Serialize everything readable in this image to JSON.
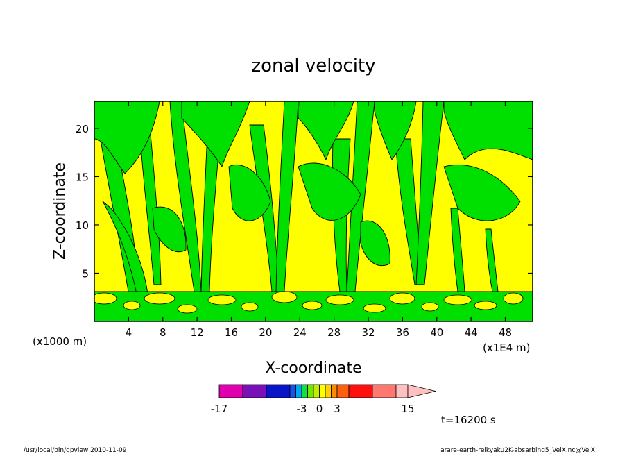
{
  "chart_data": {
    "type": "heatmap",
    "title": "zonal velocity",
    "xlabel": "X-coordinate",
    "ylabel": "Z-coordinate",
    "x_unit_left": "(x1000 m)",
    "x_unit_right": "(x1E4 m)",
    "x_ticks": [
      "4",
      "8",
      "12",
      "16",
      "20",
      "24",
      "28",
      "32",
      "36",
      "40",
      "44",
      "48"
    ],
    "x_tick_values": [
      4,
      8,
      12,
      16,
      20,
      24,
      28,
      32,
      36,
      40,
      44,
      48
    ],
    "y_ticks": [
      "5",
      "10",
      "15",
      "20"
    ],
    "y_tick_values": [
      5,
      10,
      15,
      20
    ],
    "xlim": [
      0,
      51.2
    ],
    "ylim": [
      0,
      22.8
    ],
    "colorbar": {
      "levels": [
        -17,
        -13,
        -9,
        -5,
        -4,
        -3,
        -2,
        -1,
        0,
        1,
        2,
        3,
        5,
        9,
        13,
        15
      ],
      "labels": [
        "-17",
        "-3",
        "0",
        "3",
        "15"
      ],
      "label_values": [
        -17,
        -3,
        0,
        3,
        15
      ],
      "colors": [
        "#e000b0",
        "#7a10b8",
        "#0a14c8",
        "#1a50f0",
        "#00a8f0",
        "#10e040",
        "#70e800",
        "#c0ec00",
        "#ffff00",
        "#ffd000",
        "#ff8a00",
        "#ff6010",
        "#ff1010",
        "#ff7870",
        "#ffc0c0"
      ]
    },
    "field_colors": {
      "negative": "#00e000",
      "positive": "#ffff00",
      "contour": "#000000"
    },
    "grid": false,
    "annotation_time": "t=16200 s"
  },
  "footer": {
    "left": "/usr/local/bin/gpview  2010-11-09",
    "right": "arare-earth-reikyaku2K-absarbing5_VelX.nc@VelX"
  }
}
